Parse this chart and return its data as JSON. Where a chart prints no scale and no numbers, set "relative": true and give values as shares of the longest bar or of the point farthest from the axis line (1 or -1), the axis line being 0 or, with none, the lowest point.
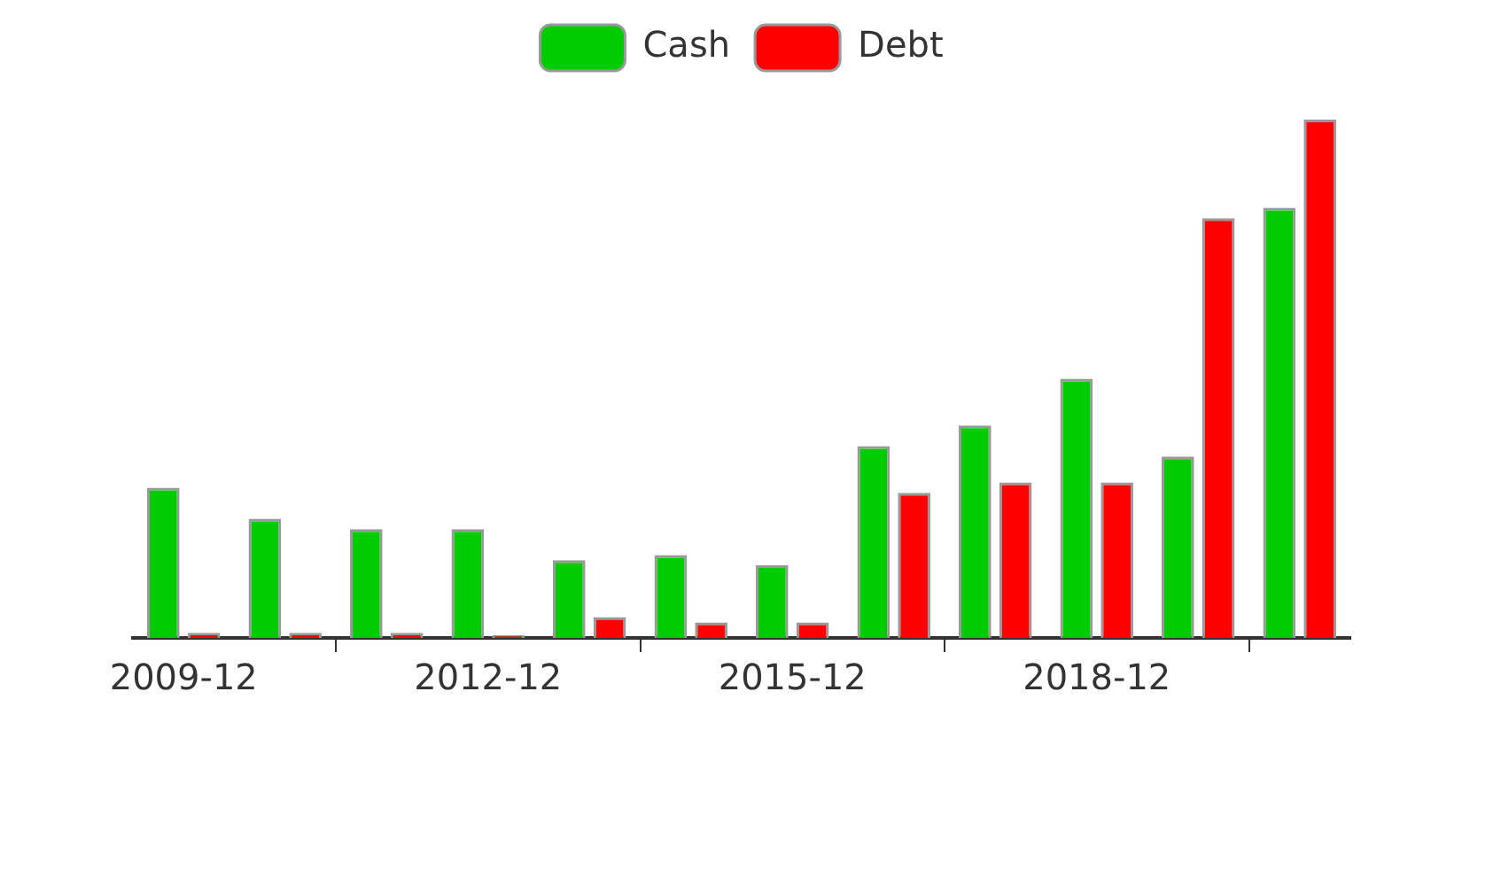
{
  "chart_data": {
    "type": "bar",
    "relative": true,
    "legend": "top",
    "categories": [
      "2009-12",
      null,
      null,
      "2012-12",
      null,
      null,
      "2015-12",
      null,
      null,
      "2018-12",
      null,
      null
    ],
    "series": [
      {
        "name": "Cash",
        "color": "#00cc00",
        "values": [
          0.29,
          0.23,
          0.21,
          0.21,
          0.15,
          0.16,
          0.14,
          0.37,
          0.41,
          0.5,
          0.35,
          0.83
        ]
      },
      {
        "name": "Debt",
        "color": "#ff0000",
        "values": [
          0.01,
          0.01,
          0.01,
          0.005,
          0.04,
          0.03,
          0.03,
          0.28,
          0.3,
          0.3,
          0.81,
          1
        ]
      }
    ]
  }
}
